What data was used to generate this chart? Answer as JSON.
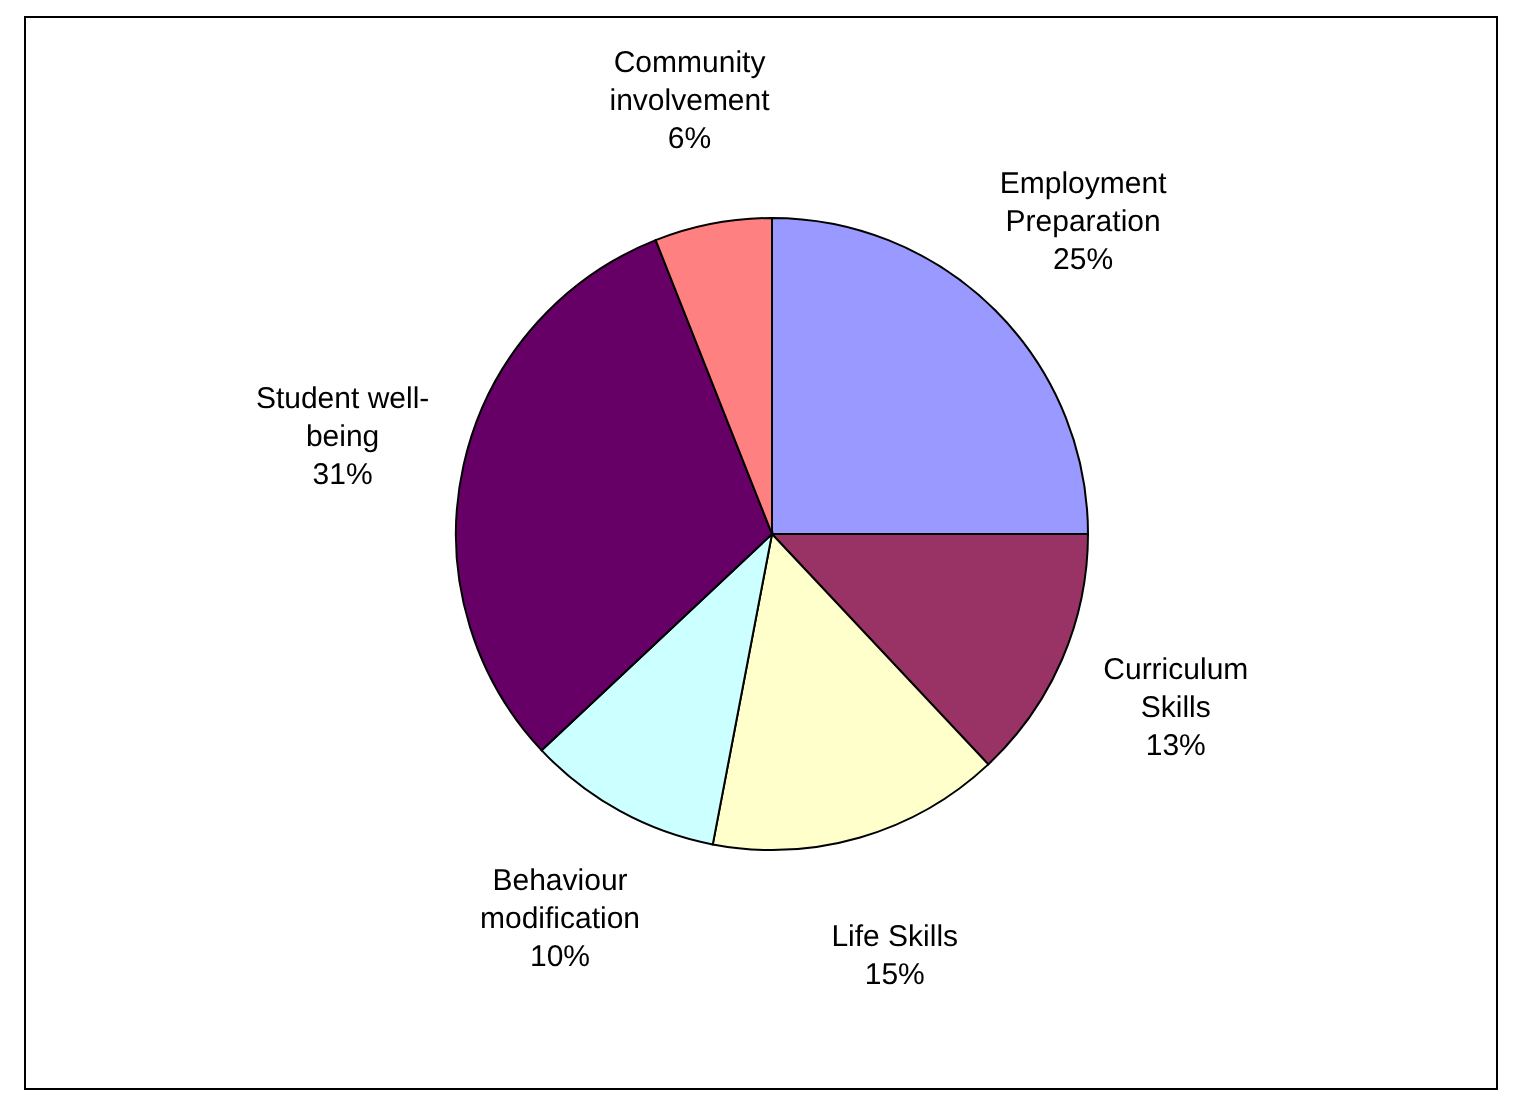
{
  "chart_data": {
    "type": "pie",
    "categories": [
      "Employment Preparation",
      "Curriculum Skills",
      "Life Skills",
      "Behaviour modification",
      "Student well-being",
      "Community involvement"
    ],
    "values": [
      25,
      13,
      15,
      10,
      31,
      6
    ],
    "value_labels": [
      "25%",
      "13%",
      "15%",
      "10%",
      "31%",
      "6%"
    ],
    "colors": [
      "#9999ff",
      "#993366",
      "#ffffcc",
      "#ccffff",
      "#660066",
      "#ff8080"
    ],
    "legend": false
  }
}
